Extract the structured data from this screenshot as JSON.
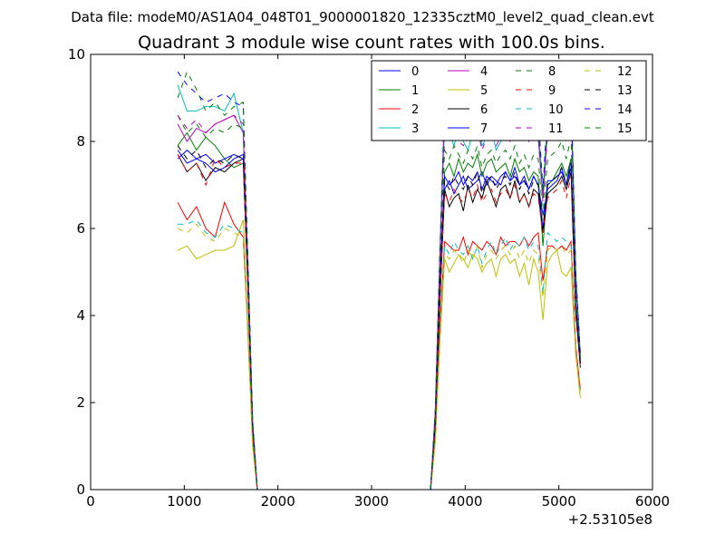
{
  "header": {
    "suptitle": "Data file: modeM0/AS1A04_048T01_9000001820_12335cztM0_level2_quad_clean.evt"
  },
  "chart_data": {
    "type": "line",
    "title": "Quadrant 3 module wise count rates with 100.0s bins.",
    "xlabel": "",
    "ylabel": "",
    "xlim": [
      0,
      6000
    ],
    "ylim": [
      0,
      10
    ],
    "x_offset_label": "+2.53105e8",
    "xticks": [
      0,
      1000,
      2000,
      3000,
      4000,
      5000,
      6000
    ],
    "yticks": [
      0,
      2,
      4,
      6,
      8,
      10
    ],
    "legend_position": "top-right",
    "grid": false,
    "colors": [
      "#0000ff",
      "#008000",
      "#ff0000",
      "#00bfbf",
      "#bf00bf",
      "#bfbf00",
      "#000000"
    ],
    "x": [
      930,
      1030,
      1130,
      1230,
      1330,
      1430,
      1530,
      1630,
      1680,
      1730,
      1780,
      1830,
      1880,
      3630,
      3680,
      3730,
      3780,
      3830,
      3880,
      3930,
      3980,
      4030,
      4080,
      4130,
      4180,
      4230,
      4280,
      4330,
      4380,
      4430,
      4480,
      4530,
      4580,
      4630,
      4680,
      4730,
      4780,
      4830,
      4880,
      4930,
      4980,
      5030,
      5080,
      5130,
      5180,
      5230
    ],
    "series": [
      {
        "name": "0",
        "dash": "solid",
        "values": [
          7.8,
          7.5,
          7.6,
          7.5,
          7.3,
          7.4,
          7.6,
          7.7,
          4.8,
          1.5,
          0,
          0,
          0,
          0,
          1.6,
          4.6,
          6.9,
          7.1,
          6.8,
          7.0,
          7.2,
          6.9,
          7.0,
          7.1,
          7.3,
          7.0,
          7.2,
          7.1,
          7.0,
          7.3,
          7.1,
          7.4,
          7.0,
          7.2,
          6.9,
          7.2,
          7.0,
          6.3,
          6.9,
          7.0,
          7.1,
          7.4,
          7.0,
          7.6,
          4.2,
          3.0
        ]
      },
      {
        "name": "1",
        "dash": "solid",
        "values": [
          7.9,
          8.2,
          7.8,
          8.1,
          7.9,
          7.6,
          7.4,
          7.5,
          4.7,
          1.4,
          0,
          0,
          0,
          0,
          1.5,
          4.8,
          7.3,
          7.5,
          7.2,
          7.6,
          7.3,
          7.5,
          7.4,
          7.7,
          7.2,
          7.5,
          7.6,
          7.3,
          7.4,
          7.5,
          7.2,
          7.6,
          7.3,
          7.4,
          7.1,
          7.3,
          7.2,
          5.6,
          7.0,
          7.1,
          7.3,
          7.5,
          7.2,
          7.6,
          4.3,
          2.9
        ]
      },
      {
        "name": "2",
        "dash": "solid",
        "values": [
          6.6,
          6.2,
          6.5,
          6.0,
          5.8,
          6.6,
          6.1,
          5.8,
          3.6,
          1.1,
          0,
          0,
          0,
          0,
          1.2,
          3.7,
          5.7,
          5.6,
          5.5,
          5.5,
          5.8,
          5.4,
          5.7,
          5.6,
          5.5,
          5.7,
          5.6,
          5.4,
          5.8,
          5.6,
          5.7,
          5.7,
          5.6,
          5.8,
          5.6,
          5.8,
          5.9,
          4.8,
          5.6,
          5.6,
          5.5,
          5.6,
          5.5,
          5.7,
          3.3,
          2.3
        ]
      },
      {
        "name": "3",
        "dash": "solid",
        "values": [
          9.3,
          8.7,
          8.7,
          8.8,
          8.8,
          8.7,
          9.1,
          8.2,
          5.1,
          1.5,
          0,
          0,
          0,
          0,
          1.8,
          5.3,
          8.4,
          8.2,
          7.9,
          8.3,
          8.0,
          7.8,
          8.2,
          8.4,
          7.9,
          8.1,
          8.3,
          7.8,
          8.0,
          8.2,
          8.4,
          8.6,
          8.7,
          8.5,
          8.6,
          8.3,
          8.4,
          6.8,
          8.6,
          8.7,
          8.9,
          9.0,
          8.5,
          9.2,
          5.0,
          3.1
        ]
      },
      {
        "name": "4",
        "dash": "solid",
        "values": [
          8.4,
          8.0,
          8.3,
          8.2,
          8.4,
          8.5,
          8.6,
          8.2,
          5.1,
          1.5,
          0,
          0,
          0,
          0,
          1.8,
          5.4,
          8.8,
          8.3,
          8.1,
          8.5,
          8.2,
          8.3,
          8.1,
          8.4,
          8.0,
          8.6,
          8.2,
          8.4,
          8.3,
          8.5,
          8.1,
          8.6,
          8.4,
          8.3,
          8.2,
          8.4,
          8.1,
          6.7,
          8.3,
          8.4,
          8.5,
          8.8,
          8.2,
          8.9,
          4.9,
          3.0
        ]
      },
      {
        "name": "5",
        "dash": "solid",
        "values": [
          5.5,
          5.6,
          5.3,
          5.4,
          5.5,
          5.5,
          5.6,
          6.2,
          3.7,
          1.0,
          0,
          0,
          0,
          0,
          1.1,
          3.4,
          5.3,
          5.0,
          5.2,
          5.4,
          5.3,
          5.1,
          5.4,
          5.3,
          5.0,
          5.2,
          5.3,
          4.9,
          5.3,
          5.4,
          5.2,
          5.3,
          4.9,
          5.2,
          4.7,
          5.3,
          5.0,
          3.9,
          5.2,
          5.4,
          5.5,
          5.0,
          4.9,
          5.1,
          3.1,
          2.1
        ]
      },
      {
        "name": "6",
        "dash": "solid",
        "values": [
          7.7,
          7.3,
          7.5,
          7.1,
          7.4,
          7.3,
          7.5,
          7.6,
          4.6,
          1.3,
          0,
          0,
          0,
          0,
          1.4,
          4.3,
          6.9,
          6.5,
          6.7,
          6.8,
          6.4,
          7.0,
          6.6,
          6.9,
          6.7,
          7.1,
          6.8,
          6.5,
          6.9,
          7.0,
          6.7,
          7.1,
          6.6,
          6.8,
          6.5,
          6.9,
          6.8,
          5.9,
          6.8,
          6.9,
          7.0,
          7.2,
          6.9,
          7.3,
          4.1,
          2.8
        ]
      },
      {
        "name": "7",
        "dash": "solid",
        "values": [
          7.6,
          7.8,
          7.6,
          7.7,
          7.5,
          7.6,
          7.7,
          7.6,
          4.7,
          1.4,
          0,
          0,
          0,
          0,
          1.5,
          4.7,
          7.2,
          7.0,
          7.1,
          7.3,
          7.0,
          7.2,
          7.1,
          7.3,
          6.9,
          7.2,
          7.1,
          7.0,
          7.2,
          7.3,
          7.1,
          7.2,
          7.0,
          7.1,
          6.9,
          7.2,
          7.0,
          6.0,
          7.1,
          7.1,
          7.2,
          7.3,
          7.0,
          7.4,
          4.2,
          2.9
        ]
      },
      {
        "name": "8",
        "dash": "dashed",
        "values": [
          8.6,
          8.2,
          8.4,
          8.1,
          8.3,
          8.2,
          8.4,
          8.3,
          5.0,
          1.5,
          0,
          0,
          0,
          0,
          1.7,
          5.1,
          7.8,
          7.6,
          7.9,
          7.7,
          7.5,
          7.8,
          7.6,
          7.9,
          7.4,
          7.7,
          7.8,
          7.5,
          7.7,
          7.8,
          7.6,
          7.9,
          7.5,
          7.7,
          7.4,
          7.7,
          7.6,
          6.3,
          7.6,
          7.7,
          7.8,
          8.0,
          7.6,
          8.1,
          4.6,
          3.0
        ]
      },
      {
        "name": "9",
        "dash": "dashed",
        "values": [
          7.7,
          7.3,
          7.5,
          7.0,
          7.6,
          7.4,
          7.5,
          7.5,
          4.6,
          1.3,
          0,
          0,
          0,
          0,
          1.4,
          4.4,
          6.8,
          6.6,
          6.9,
          6.7,
          6.6,
          6.9,
          6.7,
          7.0,
          6.6,
          6.8,
          6.9,
          6.6,
          6.8,
          6.9,
          6.7,
          7.0,
          6.6,
          6.8,
          6.5,
          6.8,
          6.7,
          5.9,
          6.7,
          6.8,
          6.9,
          7.1,
          6.7,
          7.2,
          4.0,
          2.8
        ]
      },
      {
        "name": "10",
        "dash": "dashed",
        "values": [
          6.1,
          6.1,
          6.2,
          5.9,
          5.8,
          6.1,
          6.0,
          5.9,
          3.6,
          1.1,
          0,
          0,
          0,
          0,
          1.2,
          3.6,
          5.6,
          5.4,
          5.7,
          5.5,
          5.4,
          5.6,
          5.3,
          5.6,
          5.2,
          5.5,
          5.7,
          5.4,
          5.6,
          5.8,
          5.5,
          5.7,
          5.6,
          5.8,
          5.5,
          5.7,
          5.6,
          4.5,
          5.9,
          5.8,
          5.7,
          5.8,
          5.7,
          5.6,
          3.2,
          2.2
        ]
      },
      {
        "name": "11",
        "dash": "dashed",
        "values": [
          8.6,
          8.3,
          8.5,
          8.2,
          8.4,
          8.5,
          8.6,
          8.4,
          5.1,
          1.5,
          0,
          0,
          0,
          0,
          1.7,
          5.2,
          8.1,
          8.0,
          8.2,
          8.0,
          7.9,
          8.2,
          8.0,
          8.3,
          7.8,
          8.1,
          8.2,
          7.9,
          8.1,
          8.2,
          8.0,
          8.2,
          8.1,
          8.3,
          8.0,
          8.2,
          8.1,
          6.6,
          8.2,
          8.3,
          8.4,
          8.6,
          8.2,
          8.7,
          4.8,
          3.0
        ]
      },
      {
        "name": "12",
        "dash": "dashed",
        "values": [
          6.0,
          5.9,
          6.1,
          5.8,
          5.7,
          6.0,
          5.9,
          5.8,
          3.5,
          1.0,
          0,
          0,
          0,
          0,
          1.1,
          3.5,
          5.4,
          5.3,
          5.5,
          5.4,
          5.2,
          5.5,
          5.3,
          5.6,
          5.1,
          5.4,
          5.5,
          5.3,
          5.5,
          5.6,
          5.4,
          5.6,
          5.3,
          5.5,
          5.2,
          5.5,
          5.4,
          4.4,
          5.5,
          5.6,
          5.5,
          5.6,
          5.4,
          5.5,
          3.2,
          2.2
        ]
      },
      {
        "name": "13",
        "dash": "dashed",
        "values": [
          7.9,
          7.6,
          7.8,
          7.4,
          7.6,
          7.5,
          7.7,
          7.6,
          4.7,
          1.4,
          0,
          0,
          0,
          0,
          1.5,
          4.6,
          7.1,
          6.9,
          7.2,
          7.0,
          6.9,
          7.2,
          7.0,
          7.3,
          6.8,
          7.1,
          7.2,
          6.9,
          7.1,
          7.2,
          7.0,
          7.3,
          6.9,
          7.1,
          6.8,
          7.1,
          7.0,
          6.0,
          7.0,
          7.1,
          7.2,
          7.4,
          7.0,
          7.5,
          4.2,
          2.9
        ]
      },
      {
        "name": "14",
        "dash": "dashed",
        "values": [
          9.6,
          9.3,
          9.1,
          8.9,
          9.0,
          9.1,
          8.9,
          8.8,
          5.3,
          1.6,
          0,
          0,
          0,
          0,
          1.8,
          5.5,
          8.9,
          8.7,
          8.8,
          8.6,
          8.5,
          8.8,
          8.6,
          8.9,
          8.4,
          8.7,
          8.8,
          8.5,
          8.7,
          8.8,
          8.6,
          8.9,
          8.5,
          8.7,
          8.4,
          8.7,
          8.6,
          6.9,
          8.8,
          8.9,
          9.0,
          9.2,
          8.7,
          9.2,
          5.0,
          3.1
        ]
      },
      {
        "name": "15",
        "dash": "dashed",
        "values": [
          9.0,
          9.6,
          9.2,
          8.7,
          8.9,
          8.6,
          8.8,
          8.9,
          5.2,
          1.5,
          0,
          0,
          0,
          0,
          1.7,
          5.3,
          8.5,
          8.3,
          8.6,
          8.4,
          8.2,
          8.5,
          8.3,
          8.6,
          8.1,
          8.4,
          8.5,
          8.2,
          8.4,
          8.5,
          8.3,
          8.6,
          8.2,
          8.4,
          8.1,
          8.4,
          8.3,
          6.7,
          8.4,
          8.5,
          8.6,
          8.8,
          8.4,
          8.9,
          4.9,
          3.0
        ]
      }
    ]
  }
}
